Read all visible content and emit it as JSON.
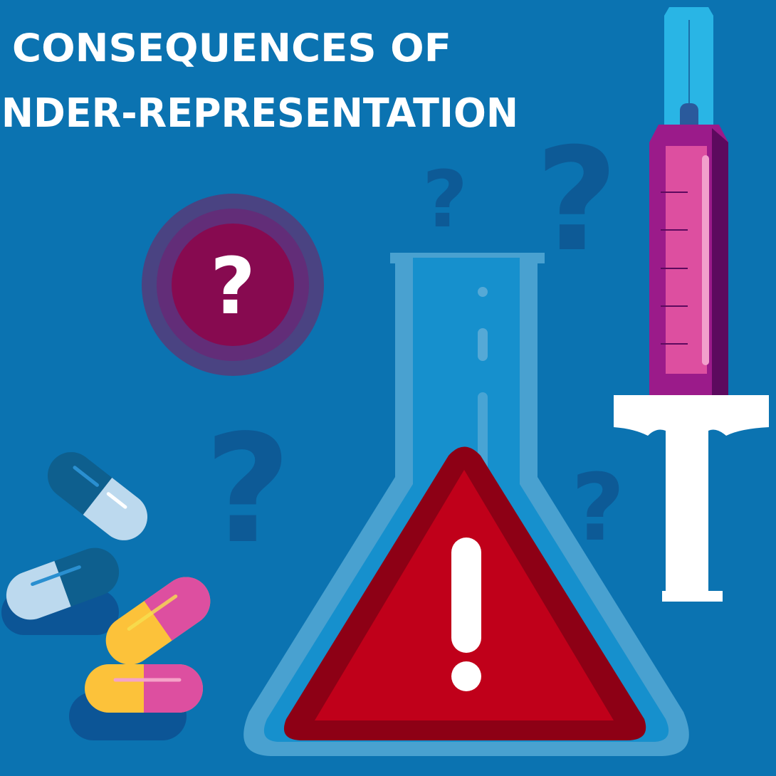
{
  "title": {
    "line1": "CONSEQUENCES OF",
    "line2": "UNDER-REPRESENTATION"
  },
  "badge": {
    "label": "?"
  },
  "question_marks": [
    "?",
    "?",
    "?",
    "?"
  ]
}
